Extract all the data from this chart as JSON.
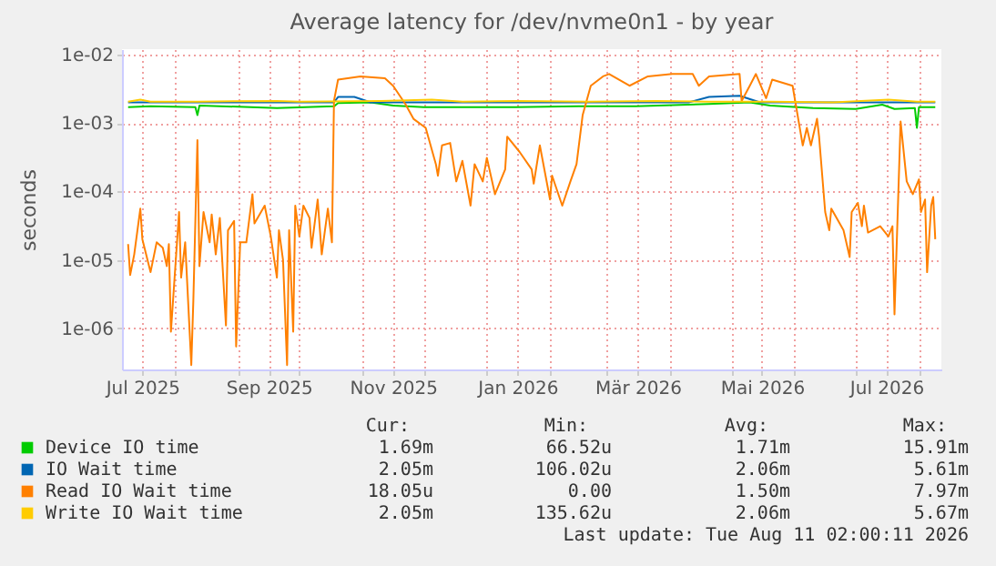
{
  "chart_data": {
    "type": "line",
    "title": "Average latency for /dev/nvme0n1 - by year",
    "ylabel": "seconds",
    "log": true,
    "grid": true,
    "legend": "bottom",
    "xlim": [
      "2025-07-06",
      "2026-08-12"
    ],
    "xticks": [
      {
        "value": "2025-07-16",
        "label": "Jul 2025"
      },
      {
        "value": "2025-08-01",
        "label": null
      },
      {
        "value": "2025-09-01",
        "label": null
      },
      {
        "value": "2025-09-16",
        "label": "Sep 2025"
      },
      {
        "value": "2025-10-01",
        "label": null
      },
      {
        "value": "2025-11-01",
        "label": null
      },
      {
        "value": "2025-11-16",
        "label": "Nov 2025"
      },
      {
        "value": "2025-12-01",
        "label": null
      },
      {
        "value": "2026-01-01",
        "label": null
      },
      {
        "value": "2026-01-16",
        "label": "Jan 2026"
      },
      {
        "value": "2026-02-01",
        "label": null
      },
      {
        "value": "2026-03-01",
        "label": null
      },
      {
        "value": "2026-03-16",
        "label": "Mär 2026"
      },
      {
        "value": "2026-04-01",
        "label": null
      },
      {
        "value": "2026-05-01",
        "label": null
      },
      {
        "value": "2026-05-16",
        "label": "Mai 2026"
      },
      {
        "value": "2026-06-01",
        "label": null
      },
      {
        "value": "2026-07-01",
        "label": null
      },
      {
        "value": "2026-07-16",
        "label": "Jul 2026"
      },
      {
        "value": "2026-08-01",
        "label": null
      }
    ],
    "ylim": [
      2.5e-07,
      0.012
    ],
    "yticks": [
      {
        "value": 0.01,
        "label": "1e-02"
      },
      {
        "value": 0.001,
        "label": "1e-03"
      },
      {
        "value": 0.0001,
        "label": "1e-04"
      },
      {
        "value": 1e-05,
        "label": "1e-05"
      },
      {
        "value": 1e-06,
        "label": "1e-06"
      }
    ],
    "series": [
      {
        "name": "Device IO time",
        "color": "#00cc00",
        "x": [
          "2025-07-09",
          "2025-07-20",
          "2025-08-11",
          "2025-08-12",
          "2025-08-13",
          "2025-09-20",
          "2025-10-18",
          "2025-10-20",
          "2025-11-05",
          "2025-11-16",
          "2025-12-01",
          "2026-01-15",
          "2026-02-15",
          "2026-03-15",
          "2026-04-20",
          "2026-05-10",
          "2026-05-20",
          "2026-06-10",
          "2026-07-01",
          "2026-07-14",
          "2026-07-20",
          "2026-07-30",
          "2026-07-31",
          "2026-08-01",
          "2026-08-09"
        ],
        "values": [
          0.0017,
          0.00175,
          0.0017,
          0.0013,
          0.0018,
          0.00165,
          0.00175,
          0.00195,
          0.002,
          0.0018,
          0.0017,
          0.0017,
          0.00175,
          0.00175,
          0.0019,
          0.002,
          0.0018,
          0.00165,
          0.0016,
          0.00185,
          0.0016,
          0.00165,
          0.00085,
          0.0017,
          0.0017
        ]
      },
      {
        "name": "IO Wait time",
        "color": "#0066b3",
        "x": [
          "2025-07-09",
          "2025-10-18",
          "2025-10-20",
          "2025-10-28",
          "2025-11-05",
          "2026-04-10",
          "2026-04-20",
          "2026-05-05",
          "2026-05-15",
          "2026-08-09"
        ],
        "values": [
          0.002,
          0.002,
          0.0024,
          0.0024,
          0.002,
          0.002,
          0.0024,
          0.0025,
          0.002,
          0.002
        ]
      },
      {
        "name": "Read IO Wait time",
        "color": "#ff8000",
        "x": [
          "2025-07-09",
          "2025-07-10",
          "2025-07-12",
          "2025-07-15",
          "2025-07-16",
          "2025-07-20",
          "2025-07-23",
          "2025-07-26",
          "2025-07-28",
          "2025-07-29",
          "2025-07-30",
          "2025-08-03",
          "2025-08-04",
          "2025-08-06",
          "2025-08-09",
          "2025-08-10",
          "2025-08-12",
          "2025-08-13",
          "2025-08-15",
          "2025-08-18",
          "2025-08-19",
          "2025-08-21",
          "2025-08-23",
          "2025-08-26",
          "2025-08-27",
          "2025-08-30",
          "2025-08-31",
          "2025-09-02",
          "2025-09-05",
          "2025-09-08",
          "2025-09-09",
          "2025-09-14",
          "2025-09-17",
          "2025-09-20",
          "2025-09-21",
          "2025-09-23",
          "2025-09-25",
          "2025-09-26",
          "2025-09-28",
          "2025-09-29",
          "2025-10-01",
          "2025-10-03",
          "2025-10-06",
          "2025-10-07",
          "2025-10-10",
          "2025-10-12",
          "2025-10-15",
          "2025-10-17",
          "2025-10-18",
          "2025-10-20",
          "2025-10-31",
          "2025-11-12",
          "2025-11-16",
          "2025-11-22",
          "2025-11-26",
          "2025-12-02",
          "2025-12-07",
          "2025-12-08",
          "2025-12-10",
          "2025-12-14",
          "2025-12-17",
          "2025-12-20",
          "2025-12-24",
          "2025-12-26",
          "2025-12-30",
          "2026-01-01",
          "2026-01-05",
          "2026-01-10",
          "2026-01-11",
          "2026-01-17",
          "2026-01-23",
          "2026-01-24",
          "2026-01-27",
          "2026-02-01",
          "2026-02-02",
          "2026-02-07",
          "2026-02-11",
          "2026-02-14",
          "2026-02-17",
          "2026-02-21",
          "2026-02-27",
          "2026-03-02",
          "2026-03-12",
          "2026-03-21",
          "2026-04-02",
          "2026-04-12",
          "2026-04-15",
          "2026-04-20",
          "2026-05-05",
          "2026-05-06",
          "2026-05-10",
          "2026-05-13",
          "2026-05-18",
          "2026-05-21",
          "2026-05-31",
          "2026-06-03",
          "2026-06-05",
          "2026-06-07",
          "2026-06-09",
          "2026-06-12",
          "2026-06-13",
          "2026-06-16",
          "2026-06-18",
          "2026-06-19",
          "2026-06-25",
          "2026-06-28",
          "2026-06-29",
          "2026-07-02",
          "2026-07-04",
          "2026-07-05",
          "2026-07-07",
          "2026-07-13",
          "2026-07-17",
          "2026-07-19",
          "2026-07-20",
          "2026-07-23",
          "2026-07-26",
          "2026-07-29",
          "2026-08-01",
          "2026-08-02",
          "2026-08-04",
          "2026-08-05",
          "2026-08-07",
          "2026-08-08",
          "2026-08-09"
        ],
        "values": [
          1.7e-05,
          6e-06,
          1.2e-05,
          5.6e-05,
          2e-05,
          6.6e-06,
          1.8e-05,
          1.5e-05,
          8.1e-06,
          1.7e-05,
          8.9e-07,
          5e-05,
          5.5e-06,
          1.8e-05,
          2.9e-07,
          2.5e-06,
          0.00056,
          8.1e-06,
          5e-05,
          1.8e-05,
          4.6e-05,
          1.2e-05,
          4.1e-05,
          1.1e-06,
          2.7e-05,
          3.7e-05,
          5.4e-07,
          1.8e-05,
          1.8e-05,
          9.1e-05,
          3.4e-05,
          6.2e-05,
          2.2e-05,
          5.5e-06,
          2.7e-05,
          1e-05,
          2.9e-07,
          2.7e-05,
          8.9e-07,
          6.2e-05,
          2.2e-05,
          6.2e-05,
          4.1e-05,
          1.5e-05,
          7.6e-05,
          1.2e-05,
          5.6e-05,
          1.8e-05,
          0.0021,
          0.0043,
          0.0048,
          0.0045,
          0.0035,
          0.0019,
          0.00115,
          0.00085,
          0.00025,
          0.00017,
          0.00047,
          0.00051,
          0.00014,
          0.00028,
          6.2e-05,
          0.00025,
          0.00014,
          0.00031,
          9.1e-05,
          0.00021,
          0.00063,
          0.00038,
          0.00021,
          0.00013,
          0.00047,
          7.6e-05,
          0.00017,
          6.2e-05,
          0.00014,
          0.00025,
          0.0013,
          0.0035,
          0.0048,
          0.0052,
          0.0035,
          0.0048,
          0.0052,
          0.0052,
          0.0035,
          0.0048,
          0.0052,
          0.0021,
          0.0035,
          0.0052,
          0.0023,
          0.0043,
          0.0035,
          0.00105,
          0.00047,
          0.00085,
          0.00047,
          0.00115,
          0.00063,
          5e-05,
          2.7e-05,
          5.6e-05,
          2.7e-05,
          1.1e-05,
          5e-05,
          6.8e-05,
          3.1e-05,
          6.2e-05,
          2.5e-05,
          3.1e-05,
          2.2e-05,
          3.1e-05,
          1.6e-06,
          0.00105,
          0.00014,
          9.1e-05,
          0.00015,
          5e-05,
          7.6e-05,
          6.6e-06,
          6.2e-05,
          8.3e-05,
          2e-05
        ]
      },
      {
        "name": "Write IO Wait time",
        "color": "#ffcc00",
        "x": [
          "2025-07-09",
          "2025-07-15",
          "2025-07-20",
          "2025-08-12",
          "2025-09-20",
          "2025-10-01",
          "2025-11-10",
          "2025-12-05",
          "2025-12-20",
          "2026-01-15",
          "2026-02-20",
          "2026-03-25",
          "2026-04-20",
          "2026-05-20",
          "2026-06-20",
          "2026-07-17",
          "2026-07-31",
          "2026-08-09"
        ],
        "values": [
          0.00205,
          0.0022,
          0.00205,
          0.00205,
          0.0021,
          0.00205,
          0.0021,
          0.0022,
          0.00205,
          0.0021,
          0.00205,
          0.0021,
          0.00205,
          0.00205,
          0.002,
          0.0022,
          0.00205,
          0.00205
        ]
      }
    ],
    "annotations": [
      "Cur:",
      "Min:",
      "Avg:",
      "Max:",
      "1.69m",
      "66.52u",
      "1.71m",
      "15.91m",
      "2.05m",
      "106.02u",
      "2.06m",
      "5.61m",
      "18.05u",
      "0.00",
      "1.50m",
      "7.97m",
      "2.05m",
      "135.62u",
      "2.06m",
      "5.67m",
      "Last update: Tue Aug 11 02:00:11 2026"
    ]
  }
}
